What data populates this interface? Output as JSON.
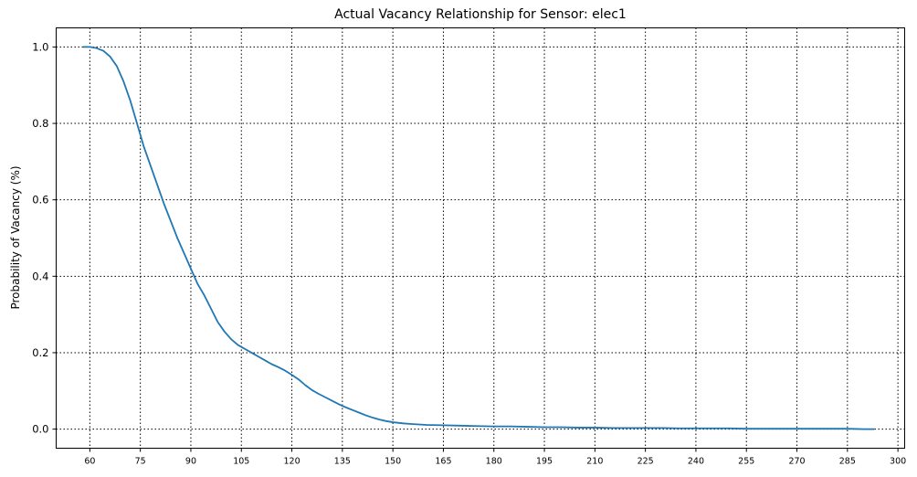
{
  "chart_data": {
    "type": "line",
    "title": "Actual Vacancy Relationship for Sensor: elec1",
    "xlabel": "",
    "ylabel": "Probability of Vacancy (%)",
    "xlim": [
      50,
      302
    ],
    "ylim": [
      -0.05,
      1.05
    ],
    "xticks": [
      60,
      75,
      90,
      105,
      120,
      135,
      150,
      165,
      180,
      195,
      210,
      225,
      240,
      255,
      270,
      285,
      300
    ],
    "yticks": [
      0.0,
      0.2,
      0.4,
      0.6,
      0.8,
      1.0
    ],
    "ytick_labels": [
      "0.0",
      "0.2",
      "0.4",
      "0.6",
      "0.8",
      "1.0"
    ],
    "grid": true,
    "color": "#1f77b4",
    "series": [
      {
        "x": [
          58,
          60,
          62,
          64,
          66,
          68,
          70,
          72,
          74,
          76,
          78,
          80,
          82,
          84,
          86,
          88,
          90,
          92,
          94,
          96,
          98,
          100,
          102,
          104,
          106,
          108,
          110,
          112,
          114,
          116,
          118,
          120,
          122,
          124,
          126,
          128,
          130,
          132,
          134,
          136,
          138,
          140,
          142,
          144,
          146,
          148,
          150,
          153,
          156,
          160,
          165,
          170,
          175,
          180,
          185,
          190,
          195,
          200,
          205,
          210,
          215,
          220,
          225,
          230,
          235,
          240,
          245,
          250,
          255,
          260,
          265,
          270,
          275,
          280,
          285,
          290,
          293
        ],
        "y": [
          1.0,
          1.0,
          0.997,
          0.99,
          0.975,
          0.95,
          0.91,
          0.86,
          0.8,
          0.74,
          0.69,
          0.64,
          0.59,
          0.545,
          0.5,
          0.46,
          0.42,
          0.38,
          0.35,
          0.315,
          0.28,
          0.255,
          0.235,
          0.22,
          0.21,
          0.2,
          0.19,
          0.18,
          0.17,
          0.162,
          0.153,
          0.142,
          0.13,
          0.115,
          0.102,
          0.092,
          0.083,
          0.074,
          0.065,
          0.057,
          0.05,
          0.043,
          0.036,
          0.03,
          0.025,
          0.021,
          0.018,
          0.015,
          0.013,
          0.011,
          0.01,
          0.009,
          0.008,
          0.007,
          0.007,
          0.006,
          0.005,
          0.005,
          0.004,
          0.004,
          0.003,
          0.003,
          0.003,
          0.003,
          0.002,
          0.002,
          0.002,
          0.002,
          0.001,
          0.001,
          0.001,
          0.001,
          0.001,
          0.001,
          0.001,
          0.0,
          0.0
        ]
      }
    ]
  }
}
